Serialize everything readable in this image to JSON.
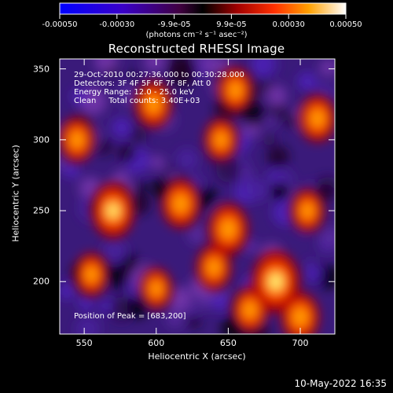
{
  "colorbar": {
    "ticks": [
      "-0.00050",
      "-0.00030",
      "-9.9e-05",
      "9.9e-05",
      "0.00030",
      "0.00050"
    ],
    "unit": "(photons cm⁻² s⁻¹ asec⁻²)"
  },
  "title": "Reconstructed RHESSI Image",
  "info": {
    "line1": "29-Oct-2010 00:27:36.000 to 00:30:28.000",
    "line2": "Detectors: 3F 4F 5F 6F 7F 8F, Att 0",
    "line3": "Energy Range: 12.0 - 25.0 keV",
    "line4": "Clean     Total counts: 3.40E+03"
  },
  "peak_label": "Position of Peak = [683,200]",
  "footer": "10-May-2022 16:35",
  "chart_data": {
    "type": "heatmap",
    "title": "Reconstructed RHESSI Image",
    "xlabel": "Heliocentric X (arcsec)",
    "ylabel": "Heliocentric Y (arcsec)",
    "xlim": [
      533,
      724
    ],
    "ylim": [
      163,
      357
    ],
    "x_ticks": [
      550,
      600,
      650,
      700
    ],
    "y_ticks": [
      200,
      250,
      300,
      350
    ],
    "colorbar_range": [
      -0.0005,
      0.0005
    ],
    "peak": [
      683,
      200
    ],
    "bright_sources": [
      {
        "x": 683,
        "y": 200,
        "rel": 1.0
      },
      {
        "x": 570,
        "y": 250,
        "rel": 0.85
      },
      {
        "x": 617,
        "y": 255,
        "rel": 0.7
      },
      {
        "x": 650,
        "y": 237,
        "rel": 0.75
      },
      {
        "x": 598,
        "y": 325,
        "rel": 0.65
      },
      {
        "x": 655,
        "y": 335,
        "rel": 0.6
      },
      {
        "x": 712,
        "y": 315,
        "rel": 0.65
      },
      {
        "x": 545,
        "y": 300,
        "rel": 0.6
      },
      {
        "x": 645,
        "y": 300,
        "rel": 0.55
      },
      {
        "x": 555,
        "y": 205,
        "rel": 0.55
      },
      {
        "x": 600,
        "y": 195,
        "rel": 0.5
      },
      {
        "x": 640,
        "y": 210,
        "rel": 0.6
      },
      {
        "x": 705,
        "y": 250,
        "rel": 0.55
      },
      {
        "x": 700,
        "y": 175,
        "rel": 0.7
      },
      {
        "x": 665,
        "y": 180,
        "rel": 0.6
      }
    ]
  }
}
